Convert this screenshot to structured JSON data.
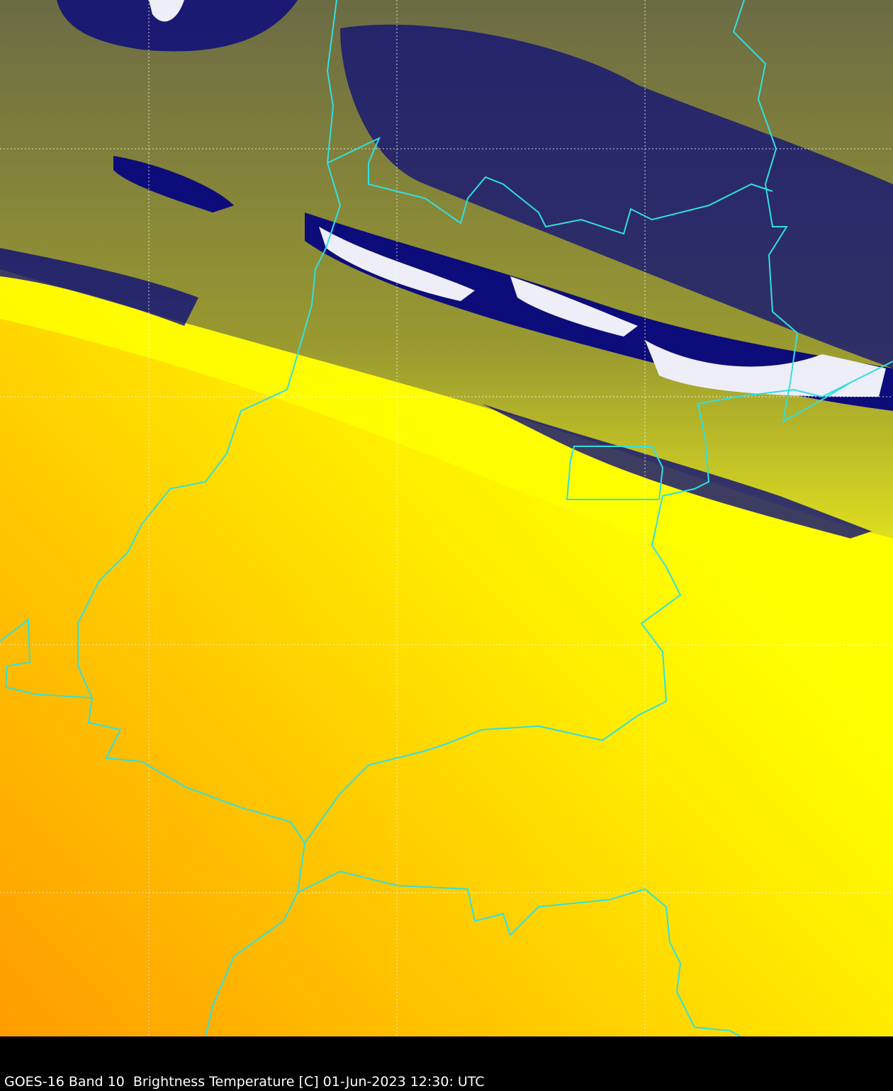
{
  "caption": "GOES-16 Band 10  Brightness Temperature [C] 01-Jun-2023 12:30: UTC",
  "colors": {
    "warm_orange": "#ffa000",
    "yellow": "#ffff00",
    "olive": "#6b6b45",
    "cold_navy": "#0a0a78",
    "coldest_white": "#ffffff",
    "borders": "#30e0e0",
    "graticule": "#ffffff"
  }
}
